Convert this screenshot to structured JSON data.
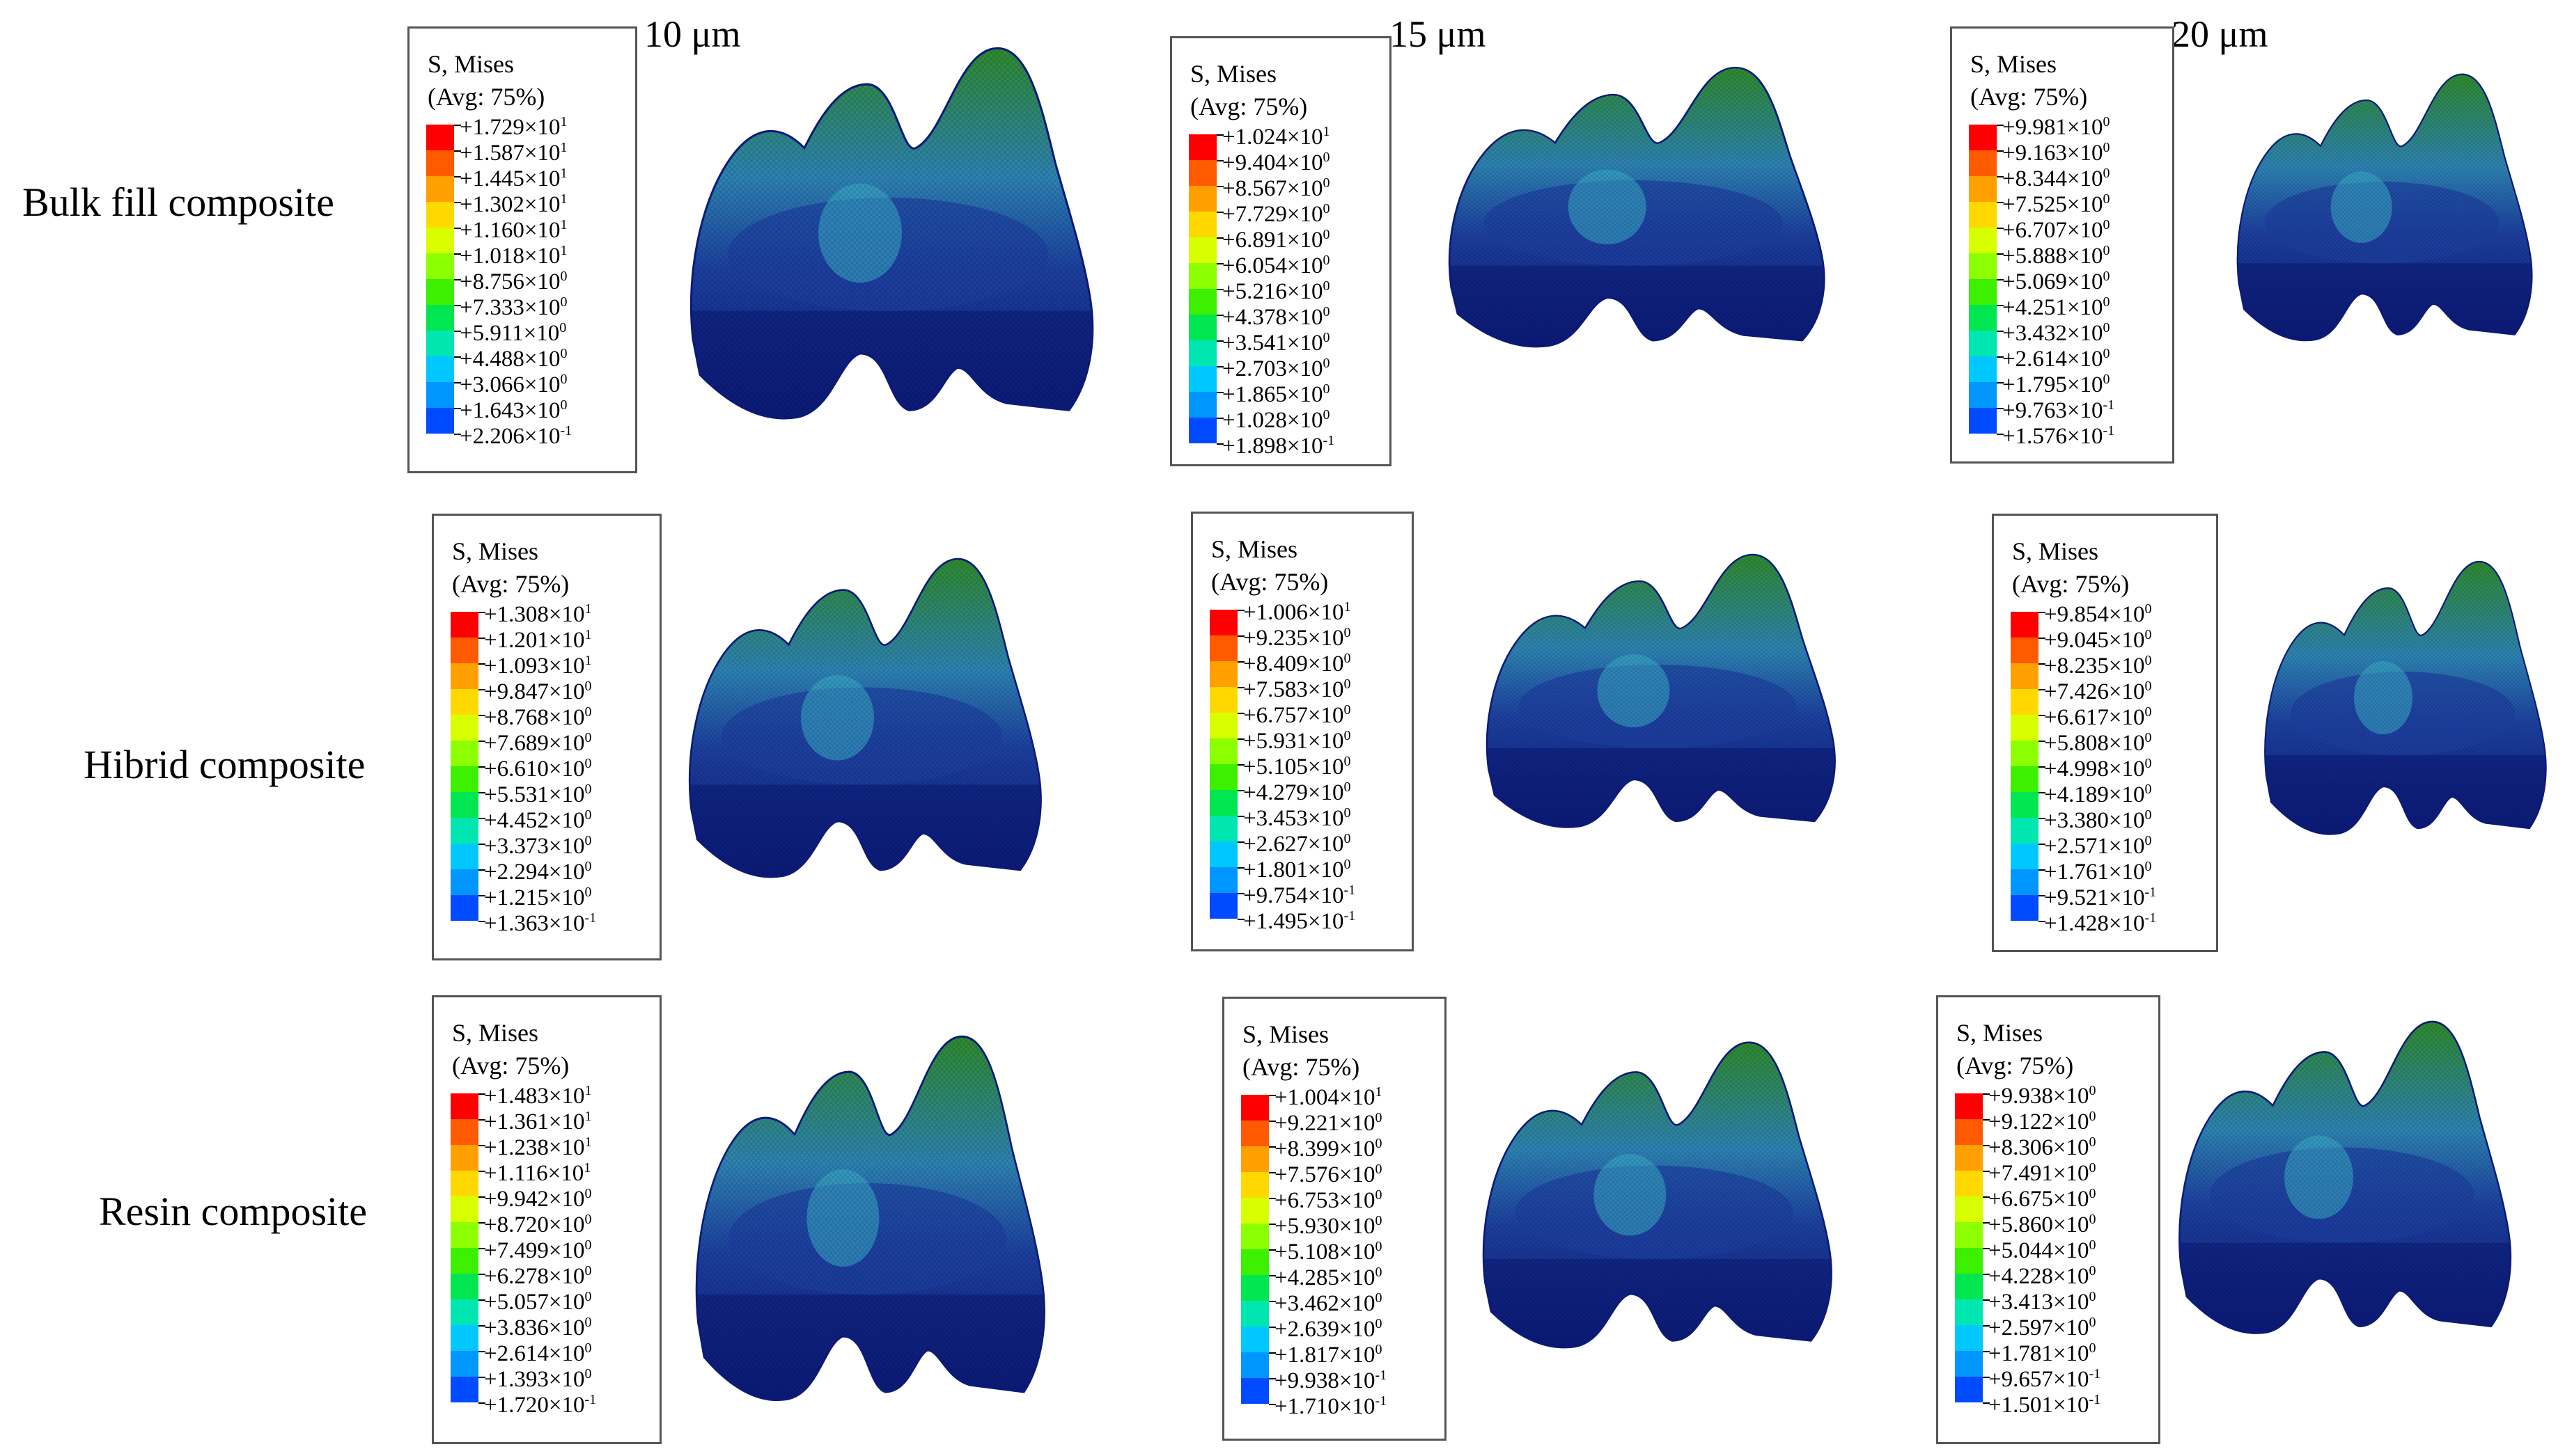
{
  "columns": [
    "10 μm",
    "15 μm",
    "20 μm"
  ],
  "rows": [
    "Bulk fill composite",
    "Hibrid composite",
    "Resin composite"
  ],
  "legend_title_line1": "S, Mises",
  "legend_title_line2": "(Avg: 75%)",
  "colors": [
    "#ff0000",
    "#ff5a00",
    "#ffa000",
    "#ffd800",
    "#d8ff00",
    "#8cff00",
    "#3cf000",
    "#00e650",
    "#00e6b0",
    "#00c8ff",
    "#0096ff",
    "#004bff",
    "#0000e6"
  ],
  "mesh_colors": {
    "dark": "#0b1a78",
    "mid": "#1c3fa0",
    "light": "#2d83b4",
    "green": "#2e8b2e",
    "cyan": "#3bb0c8"
  },
  "legends": [
    [
      "+1.729×10",
      "+1.587×10",
      "+1.445×10",
      "+1.302×10",
      "+1.160×10",
      "+1.018×10",
      "+8.756×10",
      "+7.333×10",
      "+5.911×10",
      "+4.488×10",
      "+3.066×10",
      "+1.643×10",
      "+2.206×10"
    ],
    [
      "+1.024×10",
      "+9.404×10",
      "+8.567×10",
      "+7.729×10",
      "+6.891×10",
      "+6.054×10",
      "+5.216×10",
      "+4.378×10",
      "+3.541×10",
      "+2.703×10",
      "+1.865×10",
      "+1.028×10",
      "+1.898×10"
    ],
    [
      "+9.981×10",
      "+9.163×10",
      "+8.344×10",
      "+7.525×10",
      "+6.707×10",
      "+5.888×10",
      "+5.069×10",
      "+4.251×10",
      "+3.432×10",
      "+2.614×10",
      "+1.795×10",
      "+9.763×10",
      "+1.576×10"
    ],
    [
      "+1.308×10",
      "+1.201×10",
      "+1.093×10",
      "+9.847×10",
      "+8.768×10",
      "+7.689×10",
      "+6.610×10",
      "+5.531×10",
      "+4.452×10",
      "+3.373×10",
      "+2.294×10",
      "+1.215×10",
      "+1.363×10"
    ],
    [
      "+1.006×10",
      "+9.235×10",
      "+8.409×10",
      "+7.583×10",
      "+6.757×10",
      "+5.931×10",
      "+5.105×10",
      "+4.279×10",
      "+3.453×10",
      "+2.627×10",
      "+1.801×10",
      "+9.754×10",
      "+1.495×10"
    ],
    [
      "+9.854×10",
      "+9.045×10",
      "+8.235×10",
      "+7.426×10",
      "+6.617×10",
      "+5.808×10",
      "+4.998×10",
      "+4.189×10",
      "+3.380×10",
      "+2.571×10",
      "+1.761×10",
      "+9.521×10",
      "+1.428×10"
    ],
    [
      "+1.483×10",
      "+1.361×10",
      "+1.238×10",
      "+1.116×10",
      "+9.942×10",
      "+8.720×10",
      "+7.499×10",
      "+6.278×10",
      "+5.057×10",
      "+3.836×10",
      "+2.614×10",
      "+1.393×10",
      "+1.720×10"
    ],
    [
      "+1.004×10",
      "+9.221×10",
      "+8.399×10",
      "+7.576×10",
      "+6.753×10",
      "+5.930×10",
      "+5.108×10",
      "+4.285×10",
      "+3.462×10",
      "+2.639×10",
      "+1.817×10",
      "+9.938×10",
      "+1.710×10"
    ],
    [
      "+9.938×10",
      "+9.122×10",
      "+8.306×10",
      "+7.491×10",
      "+6.675×10",
      "+5.860×10",
      "+5.044×10",
      "+4.228×10",
      "+3.413×10",
      "+2.597×10",
      "+1.781×10",
      "+9.657×10",
      "+1.501×10"
    ]
  ],
  "exponents": [
    [
      "1",
      "1",
      "1",
      "1",
      "1",
      "1",
      "0",
      "0",
      "0",
      "0",
      "0",
      "0",
      "-1"
    ],
    [
      "1",
      "0",
      "0",
      "0",
      "0",
      "0",
      "0",
      "0",
      "0",
      "0",
      "0",
      "0",
      "-1"
    ],
    [
      "0",
      "0",
      "0",
      "0",
      "0",
      "0",
      "0",
      "0",
      "0",
      "0",
      "0",
      "-1",
      "-1"
    ],
    [
      "1",
      "1",
      "1",
      "0",
      "0",
      "0",
      "0",
      "0",
      "0",
      "0",
      "0",
      "0",
      "-1"
    ],
    [
      "1",
      "0",
      "0",
      "0",
      "0",
      "0",
      "0",
      "0",
      "0",
      "0",
      "0",
      "-1",
      "-1"
    ],
    [
      "0",
      "0",
      "0",
      "0",
      "0",
      "0",
      "0",
      "0",
      "0",
      "0",
      "0",
      "-1",
      "-1"
    ],
    [
      "1",
      "1",
      "1",
      "1",
      "0",
      "0",
      "0",
      "0",
      "0",
      "0",
      "0",
      "0",
      "-1"
    ],
    [
      "1",
      "0",
      "0",
      "0",
      "0",
      "0",
      "0",
      "0",
      "0",
      "0",
      "0",
      "-1",
      "-1"
    ],
    [
      "0",
      "0",
      "0",
      "0",
      "0",
      "0",
      "0",
      "0",
      "0",
      "0",
      "0",
      "-1",
      "-1"
    ]
  ]
}
